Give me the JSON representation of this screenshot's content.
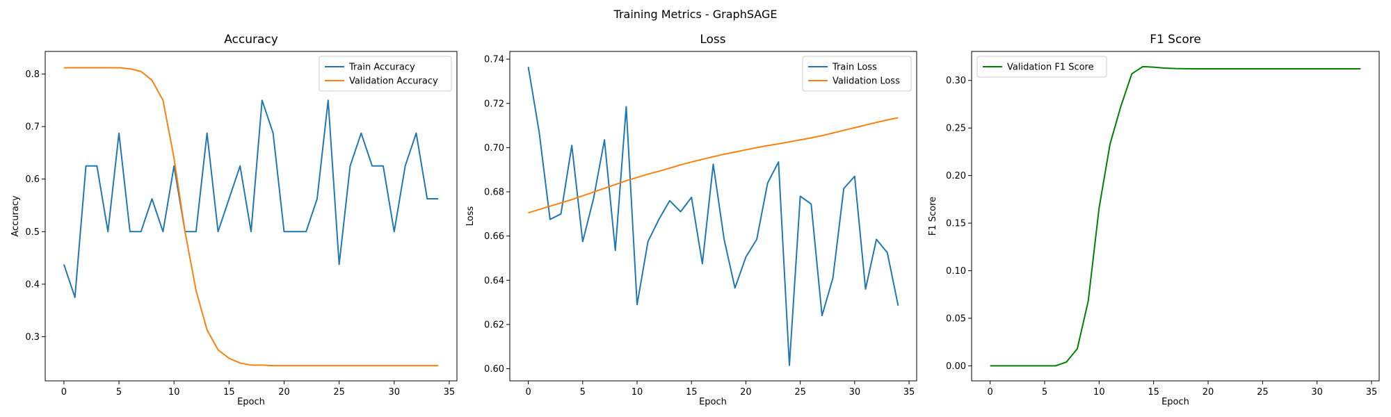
{
  "suptitle": "Training Metrics - GraphSAGE",
  "chart_data": [
    {
      "type": "line",
      "title": "Accuracy",
      "xlabel": "Epoch",
      "ylabel": "Accuracy",
      "xlim": [
        -1.7,
        35.7
      ],
      "ylim": [
        0.216,
        0.843
      ],
      "xticks": [
        0,
        5,
        10,
        15,
        20,
        25,
        30,
        35
      ],
      "yticks": [
        0.3,
        0.4,
        0.5,
        0.6,
        0.7,
        0.8
      ],
      "ytick_labels": [
        "0.3",
        "0.4",
        "0.5",
        "0.6",
        "0.7",
        "0.8"
      ],
      "legend": "top-right",
      "grid": false,
      "x": [
        0,
        1,
        2,
        3,
        4,
        5,
        6,
        7,
        8,
        9,
        10,
        11,
        12,
        13,
        14,
        15,
        16,
        17,
        18,
        19,
        20,
        21,
        22,
        23,
        24,
        25,
        26,
        27,
        28,
        29,
        30,
        31,
        32,
        33,
        34
      ],
      "series": [
        {
          "name": "Train Accuracy",
          "color": "#1f77b4",
          "values": [
            0.4375,
            0.375,
            0.625,
            0.625,
            0.5,
            0.6875,
            0.5,
            0.5,
            0.5625,
            0.5,
            0.625,
            0.5,
            0.5,
            0.6875,
            0.5,
            0.5625,
            0.625,
            0.5,
            0.75,
            0.6875,
            0.5,
            0.5,
            0.5,
            0.5625,
            0.75,
            0.4375,
            0.625,
            0.6875,
            0.625,
            0.625,
            0.5,
            0.625,
            0.6875,
            0.5625,
            0.5625
          ]
        },
        {
          "name": "Validation Accuracy",
          "color": "#ff7f0e",
          "values": [
            0.812,
            0.812,
            0.812,
            0.812,
            0.812,
            0.812,
            0.81,
            0.805,
            0.788,
            0.75,
            0.64,
            0.5,
            0.388,
            0.313,
            0.275,
            0.259,
            0.25,
            0.246,
            0.246,
            0.245,
            0.245,
            0.245,
            0.245,
            0.245,
            0.245,
            0.245,
            0.245,
            0.245,
            0.245,
            0.245,
            0.245,
            0.245,
            0.245,
            0.245,
            0.245
          ]
        }
      ]
    },
    {
      "type": "line",
      "title": "Loss",
      "xlabel": "Epoch",
      "ylabel": "Loss",
      "xlim": [
        -1.7,
        35.7
      ],
      "ylim": [
        0.5945,
        0.7435
      ],
      "xticks": [
        0,
        5,
        10,
        15,
        20,
        25,
        30,
        35
      ],
      "yticks": [
        0.6,
        0.62,
        0.64,
        0.66,
        0.68,
        0.7,
        0.72,
        0.74
      ],
      "ytick_labels": [
        "0.60",
        "0.62",
        "0.64",
        "0.66",
        "0.68",
        "0.70",
        "0.72",
        "0.74"
      ],
      "legend": "top-right",
      "grid": false,
      "x": [
        0,
        1,
        2,
        3,
        4,
        5,
        6,
        7,
        8,
        9,
        10,
        11,
        12,
        13,
        14,
        15,
        16,
        17,
        18,
        19,
        20,
        21,
        22,
        23,
        24,
        25,
        26,
        27,
        28,
        29,
        30,
        31,
        32,
        33,
        34
      ],
      "series": [
        {
          "name": "Train Loss",
          "color": "#1f77b4",
          "values": [
            0.7365,
            0.707,
            0.6675,
            0.67,
            0.701,
            0.6575,
            0.677,
            0.7035,
            0.6535,
            0.7185,
            0.629,
            0.6575,
            0.6675,
            0.676,
            0.671,
            0.6775,
            0.6475,
            0.6925,
            0.6585,
            0.6365,
            0.6505,
            0.6585,
            0.684,
            0.6935,
            0.6015,
            0.678,
            0.6745,
            0.624,
            0.641,
            0.6815,
            0.687,
            0.636,
            0.6585,
            0.6525,
            0.6285
          ]
        },
        {
          "name": "Validation Loss",
          "color": "#ff7f0e",
          "values": [
            0.6705,
            0.672,
            0.6735,
            0.675,
            0.6765,
            0.6782,
            0.6799,
            0.6816,
            0.6833,
            0.685,
            0.6865,
            0.688,
            0.6893,
            0.6907,
            0.6922,
            0.6935,
            0.6947,
            0.6959,
            0.697,
            0.698,
            0.699,
            0.7,
            0.7009,
            0.7017,
            0.7026,
            0.7035,
            0.7044,
            0.7054,
            0.7066,
            0.7078,
            0.709,
            0.7102,
            0.7114,
            0.7125,
            0.7135
          ]
        }
      ]
    },
    {
      "type": "line",
      "title": "F1 Score",
      "xlabel": "Epoch",
      "ylabel": "F1 Score",
      "xlim": [
        -1.7,
        35.7
      ],
      "ylim": [
        -0.0158,
        0.3305
      ],
      "xticks": [
        0,
        5,
        10,
        15,
        20,
        25,
        30,
        35
      ],
      "yticks": [
        0.0,
        0.05,
        0.1,
        0.15,
        0.2,
        0.25,
        0.3
      ],
      "ytick_labels": [
        "0.00",
        "0.05",
        "0.10",
        "0.15",
        "0.20",
        "0.25",
        "0.30"
      ],
      "legend": "top-left",
      "grid": false,
      "x": [
        0,
        1,
        2,
        3,
        4,
        5,
        6,
        7,
        8,
        9,
        10,
        11,
        12,
        13,
        14,
        15,
        16,
        17,
        18,
        19,
        20,
        21,
        22,
        23,
        24,
        25,
        26,
        27,
        28,
        29,
        30,
        31,
        32,
        33,
        34
      ],
      "series": [
        {
          "name": "Validation F1 Score",
          "color": "#008000",
          "values": [
            0,
            0,
            0,
            0,
            0,
            0,
            0,
            0.004,
            0.018,
            0.068,
            0.166,
            0.233,
            0.273,
            0.307,
            0.3145,
            0.314,
            0.313,
            0.3125,
            0.3123,
            0.3122,
            0.3122,
            0.3122,
            0.3122,
            0.3122,
            0.3122,
            0.3122,
            0.3122,
            0.3122,
            0.3122,
            0.3122,
            0.3122,
            0.3122,
            0.3122,
            0.3122,
            0.3122
          ]
        }
      ]
    }
  ]
}
